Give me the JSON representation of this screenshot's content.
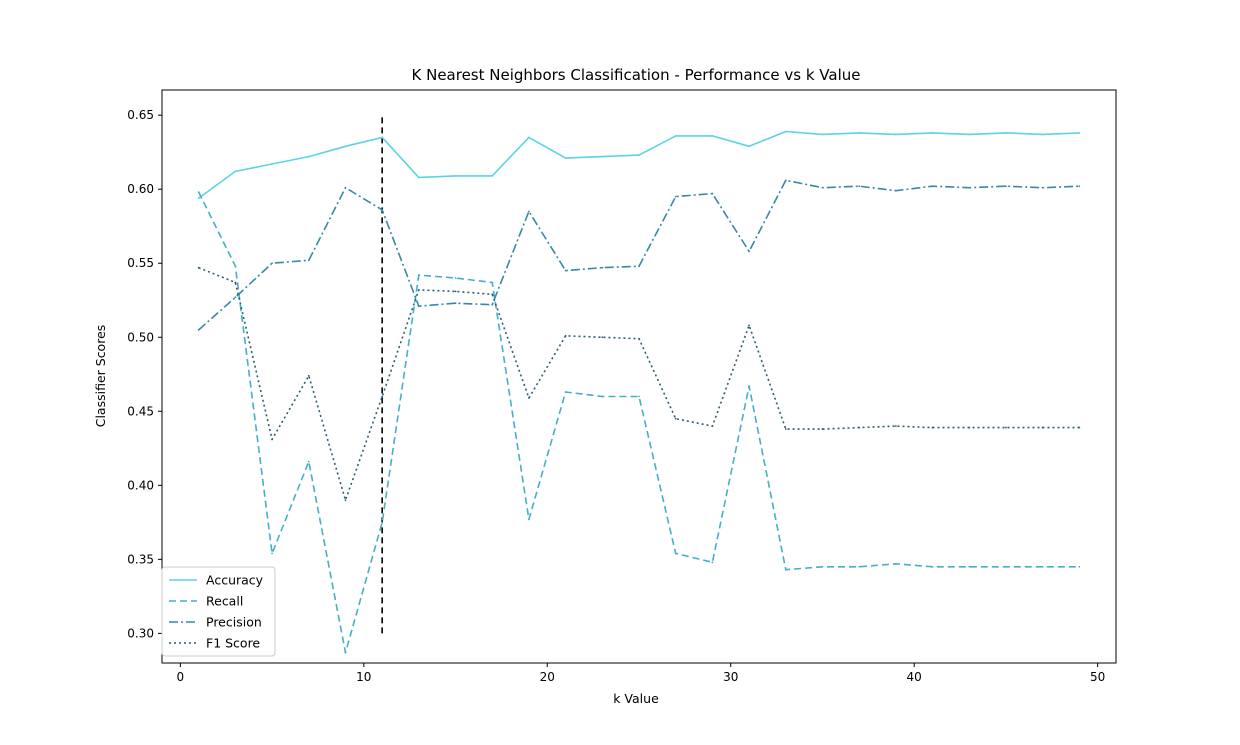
{
  "chart_data": {
    "type": "line",
    "title": "K Nearest Neighbors Classification - Performance vs k Value",
    "xlabel": "k Value",
    "ylabel": "Classifier Scores",
    "xlim": [
      -1,
      51
    ],
    "ylim": [
      0.28,
      0.667
    ],
    "xticks": [
      "0",
      "10",
      "20",
      "30",
      "40",
      "50"
    ],
    "yticks": [
      "0.30",
      "0.35",
      "0.40",
      "0.45",
      "0.50",
      "0.55",
      "0.60",
      "0.65"
    ],
    "x": [
      1,
      3,
      5,
      7,
      9,
      11,
      13,
      15,
      17,
      19,
      21,
      23,
      25,
      27,
      29,
      31,
      33,
      35,
      37,
      39,
      41,
      43,
      45,
      47,
      49
    ],
    "series": [
      {
        "name": "Accuracy",
        "color": "#5bd3e6",
        "dash": "solid",
        "values": [
          0.594,
          0.612,
          0.617,
          0.622,
          0.629,
          0.635,
          0.608,
          0.609,
          0.609,
          0.635,
          0.621,
          0.622,
          0.623,
          0.636,
          0.636,
          0.629,
          0.639,
          0.637,
          0.638,
          0.637,
          0.638,
          0.637,
          0.638,
          0.637,
          0.638
        ]
      },
      {
        "name": "Recall",
        "color": "#45afc7",
        "dash": "dashed",
        "values": [
          0.598,
          0.548,
          0.354,
          0.416,
          0.287,
          0.375,
          0.542,
          0.54,
          0.537,
          0.377,
          0.463,
          0.46,
          0.46,
          0.354,
          0.348,
          0.467,
          0.343,
          0.345,
          0.345,
          0.347,
          0.345,
          0.345,
          0.345,
          0.345,
          0.345
        ]
      },
      {
        "name": "Precision",
        "color": "#3789a5",
        "dash": "dashdot",
        "values": [
          0.505,
          0.527,
          0.55,
          0.552,
          0.601,
          0.586,
          0.521,
          0.523,
          0.522,
          0.585,
          0.545,
          0.547,
          0.548,
          0.595,
          0.597,
          0.558,
          0.606,
          0.601,
          0.602,
          0.599,
          0.602,
          0.601,
          0.602,
          0.601,
          0.602
        ]
      },
      {
        "name": "F1 Score",
        "color": "#2b5f73",
        "dash": "dotted",
        "values": [
          0.547,
          0.537,
          0.431,
          0.474,
          0.39,
          0.46,
          0.532,
          0.531,
          0.529,
          0.459,
          0.501,
          0.5,
          0.499,
          0.445,
          0.44,
          0.508,
          0.438,
          0.438,
          0.439,
          0.44,
          0.439,
          0.439,
          0.439,
          0.439,
          0.439
        ]
      }
    ],
    "vline": {
      "x": 11,
      "y_range": [
        0.3,
        0.65
      ],
      "color": "#000000",
      "dash": "dashed"
    },
    "legend": {
      "placement": "lower-left"
    },
    "grid": false
  }
}
